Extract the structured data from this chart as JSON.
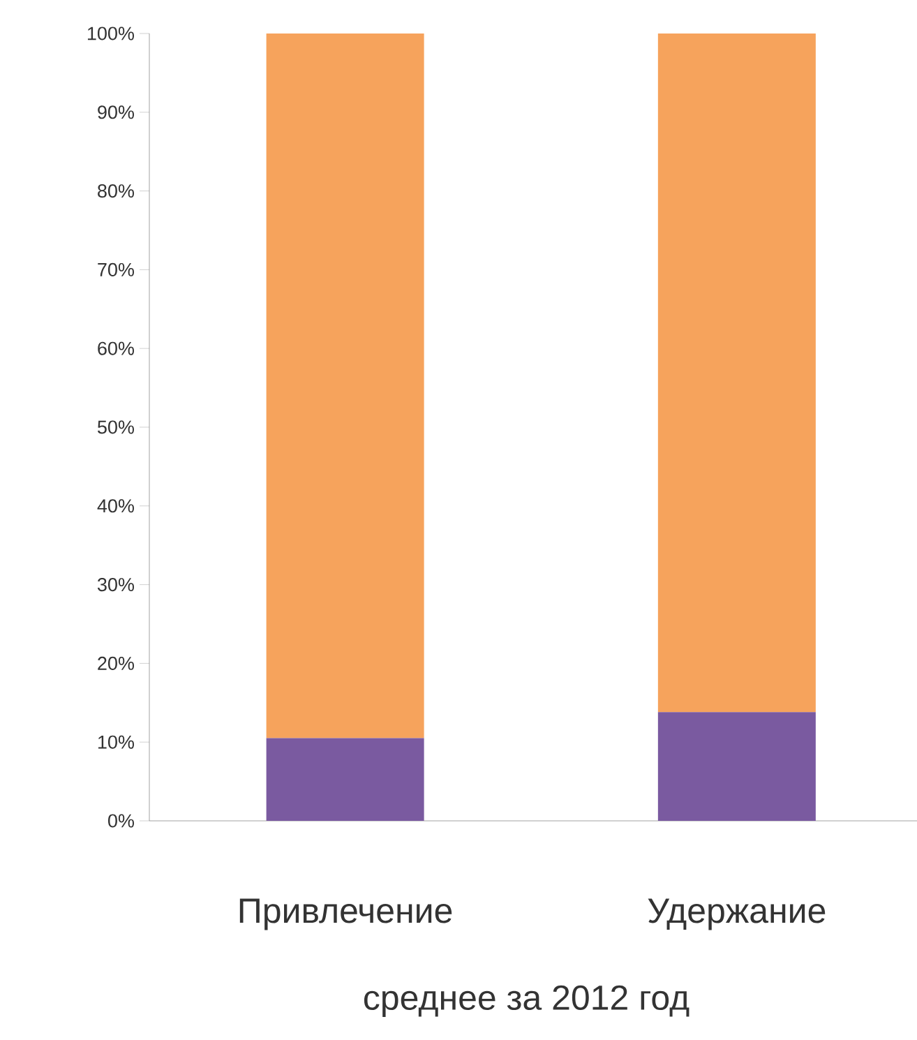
{
  "chart_data": {
    "type": "bar",
    "stacked": true,
    "xlabel": "среднее за 2012 год",
    "categories": [
      "Привлечение",
      "Удержание"
    ],
    "series": [
      {
        "color": "#7a5aa0",
        "values": [
          10.5,
          13.8
        ]
      },
      {
        "color": "#f6a35c",
        "values": [
          89.5,
          86.2
        ]
      }
    ],
    "ylim": [
      0,
      100
    ],
    "yticks": [
      {
        "value": 0,
        "label": "0%"
      },
      {
        "value": 10,
        "label": "10%"
      },
      {
        "value": 20,
        "label": "20%"
      },
      {
        "value": 30,
        "label": "30%"
      },
      {
        "value": 40,
        "label": "40%"
      },
      {
        "value": 50,
        "label": "50%"
      },
      {
        "value": 60,
        "label": "60%"
      },
      {
        "value": 70,
        "label": "70%"
      },
      {
        "value": 80,
        "label": "80%"
      },
      {
        "value": 90,
        "label": "90%"
      },
      {
        "value": 100,
        "label": "100%"
      }
    ],
    "grid": false
  }
}
